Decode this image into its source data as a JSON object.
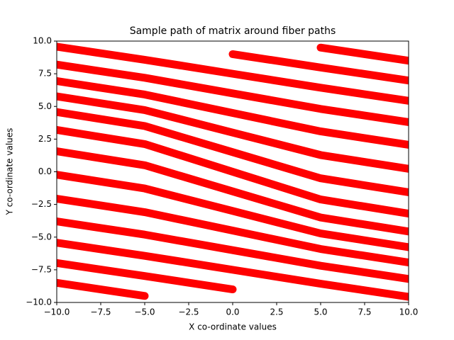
{
  "chart_data": {
    "type": "line",
    "title": "Sample path of matrix around fiber paths",
    "xlabel": "X co-ordinate values",
    "ylabel": "Y co-ordinate values",
    "color": "#ff0000",
    "x": [
      -10,
      -5,
      0,
      5,
      10
    ],
    "series": [
      {
        "values": [
          -8.5,
          -9.5,
          null,
          null,
          null
        ]
      },
      {
        "values": [
          -6.98,
          -7.98,
          -9,
          null,
          null
        ]
      },
      {
        "values": [
          -5.43,
          -6.43,
          -7.5,
          -8.57,
          -9.57
        ]
      },
      {
        "values": [
          -3.8,
          -4.81,
          -6,
          -7.19,
          -8.2
        ]
      },
      {
        "values": [
          -2.06,
          -3.09,
          -4.5,
          -5.91,
          -6.94
        ]
      },
      {
        "values": [
          -0.23,
          -1.28,
          -3,
          -4.72,
          -5.77
        ]
      },
      {
        "values": [
          1.57,
          0.5,
          -1.5,
          -3.5,
          -4.57
        ]
      },
      {
        "values": [
          3.2,
          2.12,
          0,
          -2.12,
          -3.2
        ]
      },
      {
        "values": [
          4.57,
          3.5,
          1.5,
          -0.5,
          -1.57
        ]
      },
      {
        "values": [
          5.77,
          4.72,
          3,
          1.28,
          0.23
        ]
      },
      {
        "values": [
          6.94,
          5.91,
          4.5,
          3.09,
          2.06
        ]
      },
      {
        "values": [
          8.2,
          7.19,
          6,
          4.81,
          3.8
        ]
      },
      {
        "values": [
          9.57,
          8.57,
          7.5,
          6.43,
          5.43
        ]
      },
      {
        "values": [
          null,
          null,
          9,
          7.98,
          6.98
        ]
      },
      {
        "values": [
          null,
          null,
          null,
          9.5,
          8.5
        ]
      }
    ],
    "xlim": [
      -10,
      10
    ],
    "ylim": [
      -10,
      10
    ],
    "xticks": [
      {
        "value": -10,
        "label": "−10.0"
      },
      {
        "value": -7.5,
        "label": "−7.5"
      },
      {
        "value": -5,
        "label": "−5.0"
      },
      {
        "value": -2.5,
        "label": "−2.5"
      },
      {
        "value": 0,
        "label": "0.0"
      },
      {
        "value": 2.5,
        "label": "2.5"
      },
      {
        "value": 5,
        "label": "5.0"
      },
      {
        "value": 7.5,
        "label": "7.5"
      },
      {
        "value": 10,
        "label": "10.0"
      }
    ],
    "yticks": [
      {
        "value": -10,
        "label": "−10.0"
      },
      {
        "value": -7.5,
        "label": "−7.5"
      },
      {
        "value": -5,
        "label": "−5.0"
      },
      {
        "value": -2.5,
        "label": "−2.5"
      },
      {
        "value": 0,
        "label": "0.0"
      },
      {
        "value": 2.5,
        "label": "2.5"
      },
      {
        "value": 5,
        "label": "5.0"
      },
      {
        "value": 7.5,
        "label": "7.5"
      },
      {
        "value": 10,
        "label": "10.0"
      }
    ],
    "grid": false
  }
}
